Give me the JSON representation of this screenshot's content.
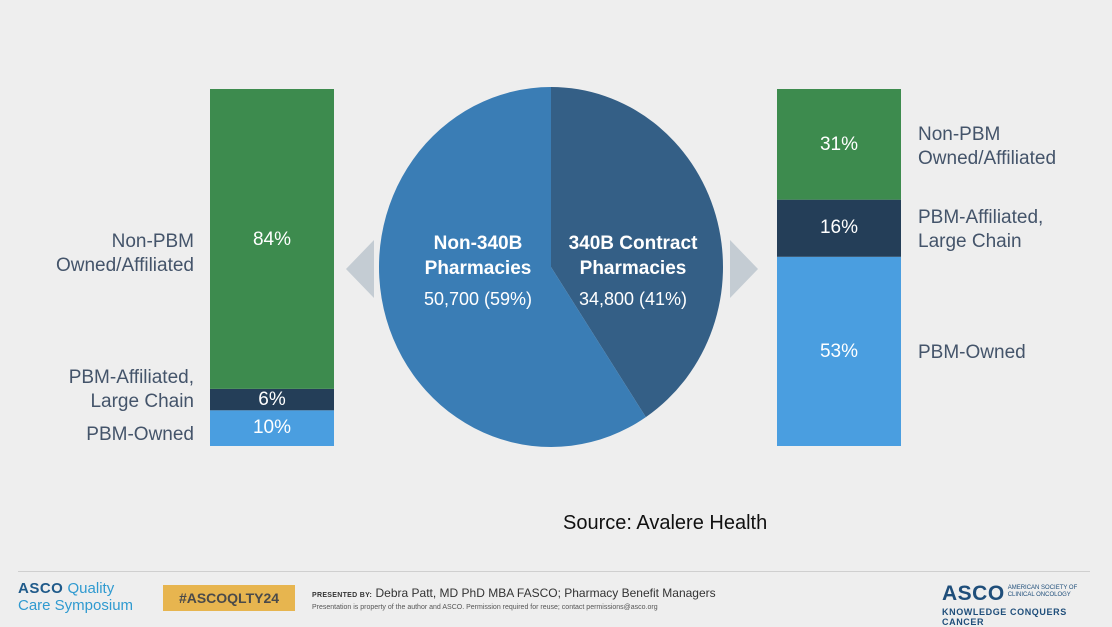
{
  "colors": {
    "green": "#3d8b4e",
    "navy": "#243e58",
    "light_blue": "#4a9ee0",
    "pie_blue": "#3a7db5",
    "pie_dark": "#345f86",
    "arrow": "#c4ccd3",
    "label": "#44546a"
  },
  "chart_data": [
    {
      "type": "bar",
      "stacked": true,
      "series": [
        {
          "name": "PBM-Owned",
          "value": 10,
          "label": "10%",
          "color": "light_blue"
        },
        {
          "name": "PBM-Affiliated, Large Chain",
          "value": 6,
          "label": "6%",
          "color": "navy"
        },
        {
          "name": "Non-PBM Owned/Affiliated",
          "value": 84,
          "label": "84%",
          "color": "green"
        }
      ]
    },
    {
      "type": "pie",
      "slices": [
        {
          "name": "Non-340B Pharmacies",
          "value": 50700,
          "display": "50,700 (59%)",
          "percent": 59,
          "color": "pie_blue"
        },
        {
          "name": "340B Contract Pharmacies",
          "value": 34800,
          "display": "34,800 (41%)",
          "percent": 41,
          "color": "pie_dark"
        }
      ]
    },
    {
      "type": "bar",
      "stacked": true,
      "series": [
        {
          "name": "PBM-Owned",
          "value": 53,
          "label": "53%",
          "color": "light_blue"
        },
        {
          "name": "PBM-Affiliated, Large Chain",
          "value": 16,
          "label": "16%",
          "color": "navy"
        },
        {
          "name": "Non-PBM Owned/Affiliated",
          "value": 31,
          "label": "31%",
          "color": "green"
        }
      ]
    }
  ],
  "left_labels": {
    "non_pbm": [
      "Non-PBM",
      "Owned/Affiliated"
    ],
    "pbm_affiliated": [
      "PBM-Affiliated,",
      "Large Chain"
    ],
    "pbm_owned": "PBM-Owned"
  },
  "right_labels": {
    "non_pbm": [
      "Non-PBM",
      "Owned/Affiliated"
    ],
    "pbm_affiliated": [
      "PBM-Affiliated,",
      "Large Chain"
    ],
    "pbm_owned": "PBM-Owned"
  },
  "pie_labels": {
    "non340b_name": [
      "Non-340B",
      "Pharmacies"
    ],
    "c340b_name": [
      "340B Contract",
      "Pharmacies"
    ]
  },
  "source": "Source:  Avalere Health",
  "footer": {
    "logo_left": {
      "asco": "ASCO",
      "line1": "Quality",
      "line2": "Care Symposium"
    },
    "hashtag": "#ASCOQLTY24",
    "presented_by_label": "PRESENTED BY:",
    "presenter": "Debra Patt, MD PhD MBA FASCO; Pharmacy Benefit Managers",
    "disclaimer": "Presentation is property of the author and ASCO. Permission required for reuse; contact permissions@asco.org",
    "logo_right": {
      "asco": "ASCO",
      "org": "American Society of Clinical Oncology",
      "tagline": "KNOWLEDGE CONQUERS CANCER"
    }
  }
}
